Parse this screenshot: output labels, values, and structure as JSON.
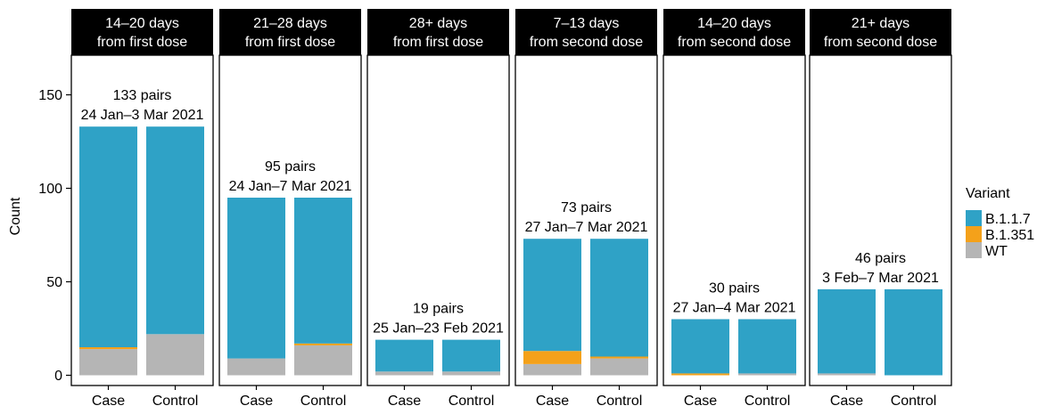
{
  "chart_data": {
    "type": "bar",
    "stacked": true,
    "ylabel": "Count",
    "ylim": [
      0,
      170
    ],
    "yticks": [
      0,
      50,
      100,
      150
    ],
    "grid": false,
    "legend": {
      "title": "Variant",
      "placement": "right",
      "items": [
        {
          "name": "B.1.1.7",
          "color": "#2fa2c6"
        },
        {
          "name": "B.1.351",
          "color": "#f4a11a"
        },
        {
          "name": "WT",
          "color": "#b5b5b5"
        }
      ]
    },
    "panels": [
      {
        "strip": [
          "14–20 days",
          "from first dose"
        ],
        "annotation": [
          "133 pairs",
          "24 Jan–3 Mar 2021"
        ],
        "categories": [
          "Case",
          "Control"
        ],
        "series": [
          {
            "name": "WT",
            "values": [
              14,
              22
            ]
          },
          {
            "name": "B.1.351",
            "values": [
              1,
              0
            ]
          },
          {
            "name": "B.1.1.7",
            "values": [
              118,
              111
            ]
          }
        ]
      },
      {
        "strip": [
          "21–28 days",
          "from first dose"
        ],
        "annotation": [
          "95 pairs",
          "24 Jan–7 Mar 2021"
        ],
        "categories": [
          "Case",
          "Control"
        ],
        "series": [
          {
            "name": "WT",
            "values": [
              9,
              16
            ]
          },
          {
            "name": "B.1.351",
            "values": [
              0,
              1
            ]
          },
          {
            "name": "B.1.1.7",
            "values": [
              86,
              78
            ]
          }
        ]
      },
      {
        "strip": [
          "28+ days",
          "from first dose"
        ],
        "annotation": [
          "19 pairs",
          "25 Jan–23 Feb 2021"
        ],
        "categories": [
          "Case",
          "Control"
        ],
        "series": [
          {
            "name": "WT",
            "values": [
              2,
              2
            ]
          },
          {
            "name": "B.1.351",
            "values": [
              0,
              0
            ]
          },
          {
            "name": "B.1.1.7",
            "values": [
              17,
              17
            ]
          }
        ]
      },
      {
        "strip": [
          "7–13 days",
          "from second dose"
        ],
        "annotation": [
          "73 pairs",
          "27 Jan–7 Mar 2021"
        ],
        "categories": [
          "Case",
          "Control"
        ],
        "series": [
          {
            "name": "WT",
            "values": [
              6,
              9
            ]
          },
          {
            "name": "B.1.351",
            "values": [
              7,
              1
            ]
          },
          {
            "name": "B.1.1.7",
            "values": [
              60,
              63
            ]
          }
        ]
      },
      {
        "strip": [
          "14–20 days",
          "from second dose"
        ],
        "annotation": [
          "30 pairs",
          "27 Jan–4 Mar 2021"
        ],
        "categories": [
          "Case",
          "Control"
        ],
        "series": [
          {
            "name": "WT",
            "values": [
              0,
              1
            ]
          },
          {
            "name": "B.1.351",
            "values": [
              1,
              0
            ]
          },
          {
            "name": "B.1.1.7",
            "values": [
              29,
              29
            ]
          }
        ]
      },
      {
        "strip": [
          "21+ days",
          "from second dose"
        ],
        "annotation": [
          "46 pairs",
          "3 Feb–7 Mar 2021"
        ],
        "categories": [
          "Case",
          "Control"
        ],
        "series": [
          {
            "name": "WT",
            "values": [
              1,
              0
            ]
          },
          {
            "name": "B.1.351",
            "values": [
              0,
              0
            ]
          },
          {
            "name": "B.1.1.7",
            "values": [
              45,
              46
            ]
          }
        ]
      }
    ]
  }
}
